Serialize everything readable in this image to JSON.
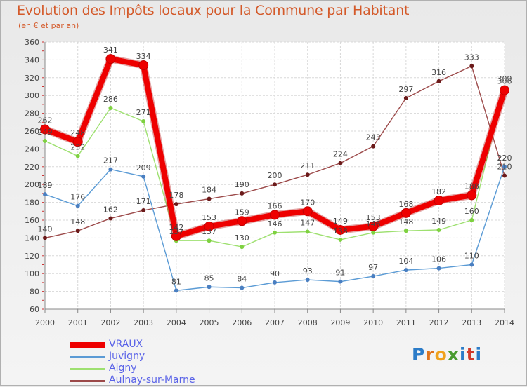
{
  "header": {
    "title": "Evolution des Impôts locaux pour la Commune par Habitant",
    "subtitle": "(en € et par an)"
  },
  "logo": {
    "letters": [
      "P",
      "r",
      "o",
      "x",
      "i",
      "t",
      "i"
    ]
  },
  "chart_data": {
    "type": "line",
    "title": "Evolution des Impôts locaux pour la Commune par Habitant",
    "subtitle": "(en € et par an)",
    "xlabel": "",
    "ylabel": "",
    "ylim": [
      60,
      360
    ],
    "y_ticks": [
      60,
      80,
      100,
      120,
      140,
      160,
      180,
      200,
      220,
      240,
      260,
      280,
      300,
      320,
      340,
      360
    ],
    "grid": true,
    "legend_position": "bottom-left",
    "categories": [
      "2000",
      "2001",
      "2002",
      "2003",
      "2004",
      "2005",
      "2006",
      "2007",
      "2008",
      "2009",
      "2010",
      "2011",
      "2012",
      "2013",
      "2014"
    ],
    "series": [
      {
        "name": "VRAUX",
        "color": "#ee0000",
        "marker_color": "#ee0000",
        "values": [
          262,
          248,
          341,
          334,
          142,
          153,
          159,
          166,
          170,
          149,
          153,
          168,
          182,
          188,
          306
        ]
      },
      {
        "name": "Juvigny",
        "color": "#5b9bd5",
        "marker_color": "#4a7fc1",
        "values": [
          189,
          176,
          217,
          209,
          81,
          85,
          84,
          90,
          93,
          91,
          97,
          104,
          106,
          110,
          220
        ]
      },
      {
        "name": "Aigny",
        "color": "#9ee070",
        "marker_color": "#7ed140",
        "values": [
          249,
          232,
          286,
          271,
          137,
          137,
          130,
          146,
          147,
          138,
          146,
          148,
          149,
          160,
          309
        ]
      },
      {
        "name": "Aulnay-sur-Marne",
        "color": "#9c4a4a",
        "marker_color": "#6b1a1a",
        "values": [
          140,
          148,
          162,
          171,
          178,
          184,
          190,
          200,
          211,
          224,
          243,
          297,
          316,
          333,
          210
        ]
      }
    ]
  }
}
